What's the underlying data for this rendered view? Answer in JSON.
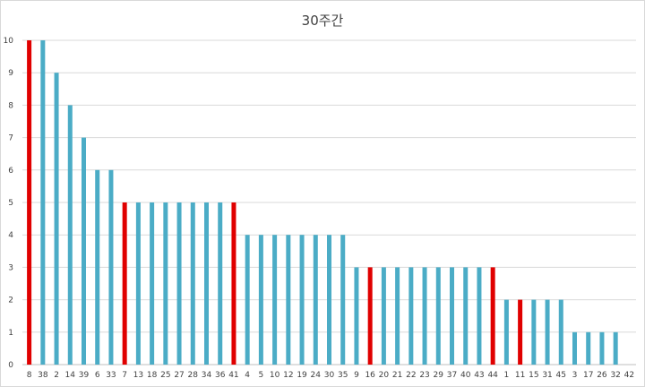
{
  "chart_data": {
    "type": "bar",
    "title": "30주간",
    "xlabel": "",
    "ylabel": "",
    "ylim": [
      0,
      10
    ],
    "yticks": [
      0,
      1,
      2,
      3,
      4,
      5,
      6,
      7,
      8,
      9,
      10
    ],
    "grid": true,
    "legend": "none",
    "categories": [
      "8",
      "38",
      "2",
      "14",
      "39",
      "6",
      "33",
      "7",
      "13",
      "18",
      "25",
      "27",
      "28",
      "34",
      "36",
      "41",
      "4",
      "5",
      "10",
      "12",
      "19",
      "24",
      "30",
      "35",
      "9",
      "16",
      "20",
      "21",
      "22",
      "23",
      "29",
      "37",
      "40",
      "43",
      "44",
      "1",
      "11",
      "15",
      "31",
      "45",
      "3",
      "17",
      "26",
      "32",
      "42"
    ],
    "values": [
      10,
      10,
      9,
      8,
      7,
      6,
      6,
      5,
      5,
      5,
      5,
      5,
      5,
      5,
      5,
      5,
      4,
      4,
      4,
      4,
      4,
      4,
      4,
      4,
      3,
      3,
      3,
      3,
      3,
      3,
      3,
      3,
      3,
      3,
      3,
      2,
      2,
      2,
      2,
      2,
      1,
      1,
      1,
      1,
      0
    ],
    "highlighted": [
      "8",
      "7",
      "41",
      "16",
      "44",
      "11"
    ],
    "colors": {
      "default": "#4bacc6",
      "highlight": "#e00000"
    }
  }
}
